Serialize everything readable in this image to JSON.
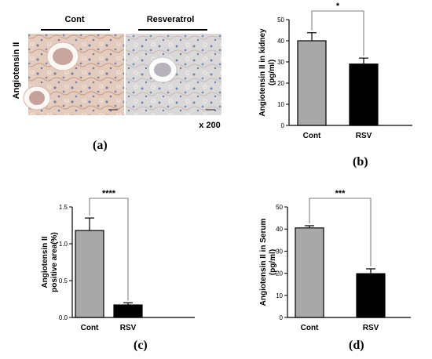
{
  "panel_a": {
    "ylabel": "Angiotensin II",
    "groups": [
      "Cont",
      "Resveratrol"
    ],
    "magnification": "x 200",
    "panel_label": "(a)"
  },
  "colors": {
    "cont_bar": "#a8a8a8",
    "rsv_bar": "#000000",
    "stain_bg": "#e2cbbe",
    "stain_bg_rsv": "#d8d6d6"
  },
  "chart_data": [
    {
      "id": "b",
      "type": "bar",
      "panel_label": "(b)",
      "categories": [
        "Cont",
        "RSV"
      ],
      "values": [
        40,
        29
      ],
      "errors": [
        3.8,
        2.8
      ],
      "ylabel": "Angiotensin II in kidney\n(pg/ml)",
      "ylim": [
        0,
        50
      ],
      "yticks": [
        0,
        10,
        20,
        30,
        40,
        50
      ],
      "ytick_labels": [
        "0",
        "10",
        "20",
        "30",
        "40",
        "50"
      ],
      "significance": "*",
      "grid": false
    },
    {
      "id": "c",
      "type": "bar",
      "panel_label": "(c)",
      "categories": [
        "Cont",
        "RSV"
      ],
      "values": [
        1.18,
        0.17
      ],
      "errors": [
        0.17,
        0.03
      ],
      "ylabel": "Angiotensin II\npositive area(%)",
      "ylim": [
        0,
        1.5
      ],
      "yticks": [
        0,
        0.5,
        1.0,
        1.5
      ],
      "ytick_labels": [
        "0.0",
        "0.5",
        "1.0",
        "1.5"
      ],
      "significance": "****",
      "grid": false
    },
    {
      "id": "d",
      "type": "bar",
      "panel_label": "(d)",
      "categories": [
        "Cont",
        "RSV"
      ],
      "values": [
        40.5,
        19.8
      ],
      "errors": [
        1.0,
        2.2
      ],
      "ylabel": "Angiotensin II in Serum\n(pg/ml)",
      "ylim": [
        0,
        50
      ],
      "yticks": [
        0,
        10,
        20,
        30,
        40,
        50
      ],
      "ytick_labels": [
        "0",
        "10",
        "20",
        "30",
        "40",
        "50"
      ],
      "significance": "***",
      "grid": false
    }
  ]
}
